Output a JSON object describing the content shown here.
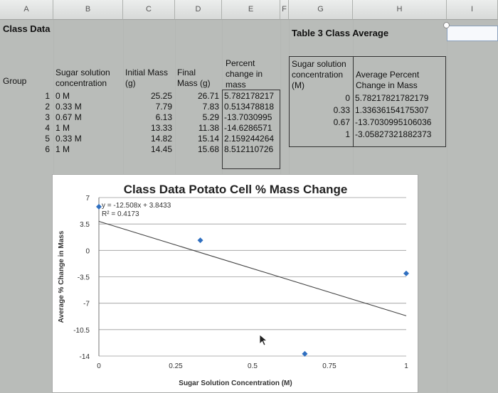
{
  "columns": [
    "A",
    "B",
    "C",
    "D",
    "E",
    "F",
    "G",
    "H",
    "I"
  ],
  "class_data_title": "Class Data",
  "table3_title": "Table 3 Class Average",
  "headers": {
    "group": "Group",
    "sugar_1": "Sugar solution",
    "sugar_2": "concentration",
    "init_1": "Initial Mass",
    "init_2": "(g)",
    "final_1": "Final",
    "final_2": "Mass (g)",
    "pct_1": "Percent",
    "pct_2": "change in",
    "pct_3": "mass",
    "t3_conc_1": "Sugar solution",
    "t3_conc_2": "concentration",
    "t3_conc_3": "(M)",
    "t3_avg_1": "Average Percent",
    "t3_avg_2": "Change in Mass"
  },
  "rows": [
    {
      "group": "1",
      "conc": "0 M",
      "initial": "25.25",
      "final": "26.71",
      "pct": "5.782178217"
    },
    {
      "group": "2",
      "conc": "0.33 M",
      "initial": "7.79",
      "final": "7.83",
      "pct": "0.513478818"
    },
    {
      "group": "3",
      "conc": "0.67 M",
      "initial": "6.13",
      "final": "5.29",
      "pct": "-13.7030995"
    },
    {
      "group": "4",
      "conc": "1 M",
      "initial": "13.33",
      "final": "11.38",
      "pct": "-14.6286571"
    },
    {
      "group": "5",
      "conc": "0.33 M",
      "initial": "14.82",
      "final": "15.14",
      "pct": "2.159244264"
    },
    {
      "group": "6",
      "conc": "1 M",
      "initial": "14.45",
      "final": "15.68",
      "pct": "8.512110726"
    }
  ],
  "averages": [
    {
      "conc": "0",
      "avg": "5.78217821782179"
    },
    {
      "conc": "0.33",
      "avg": "1.33636154175307"
    },
    {
      "conc": "0.67",
      "avg": "-13.7030995106036"
    },
    {
      "conc": "1",
      "avg": "-3.05827321882373"
    }
  ],
  "chart_data": {
    "type": "scatter",
    "title": "Class Data Potato Cell % Mass Change",
    "xlabel": "Sugar Solution Concentration (M)",
    "ylabel": "Average % Change in Mass",
    "x": [
      0,
      0.33,
      0.67,
      1
    ],
    "y": [
      5.78217821782179,
      1.33636154175307,
      -13.7030995106036,
      -3.05827321882373
    ],
    "xlim": [
      0,
      1
    ],
    "ylim": [
      -14,
      7
    ],
    "x_ticks": [
      "0",
      "0.25",
      "0.5",
      "0.75",
      "1"
    ],
    "y_ticks": [
      "7",
      "3.5",
      "0",
      "-3.5",
      "-7",
      "-10.5",
      "-14"
    ],
    "trendline": {
      "slope": -12.508,
      "intercept": 3.8433,
      "equation": "y = -12.508x + 3.8433",
      "r2": "R² = 0.4173"
    },
    "grid": true,
    "marker_color": "#2f6fc0",
    "line_color": "#444444"
  }
}
